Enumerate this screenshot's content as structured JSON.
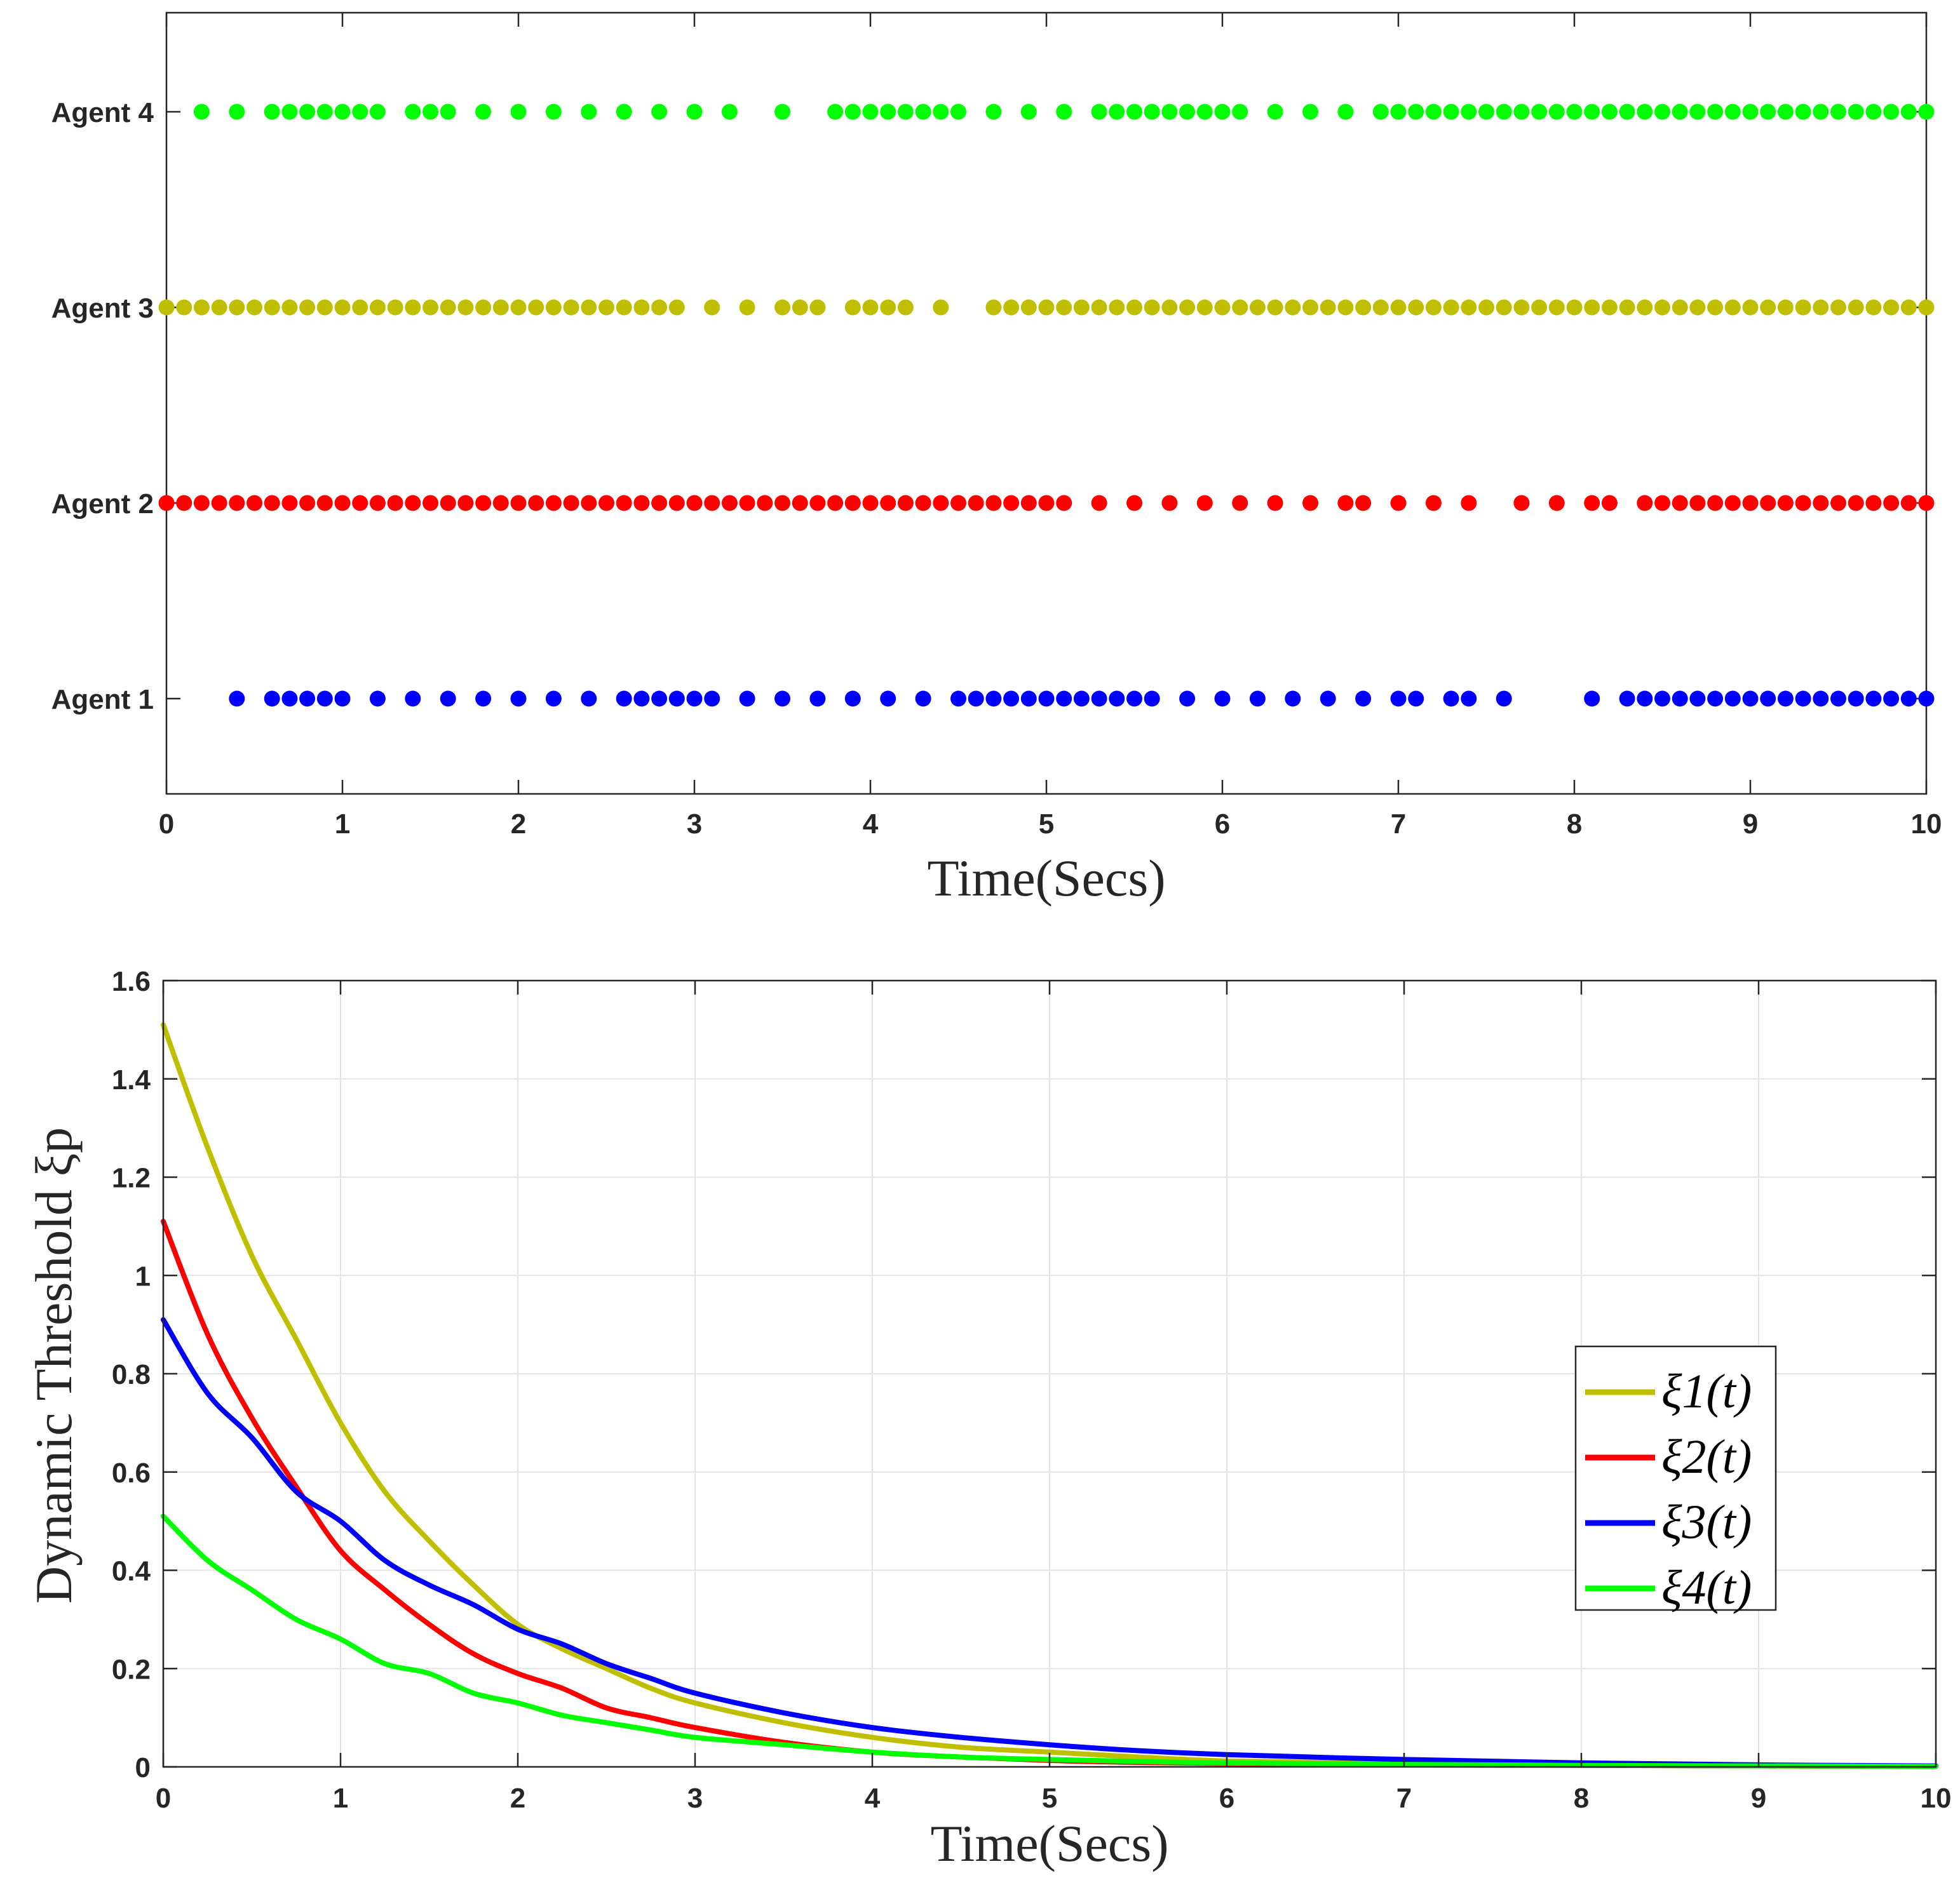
{
  "chart_data": [
    {
      "type": "scatter",
      "title": "",
      "xlabel": "Time(Secs)",
      "ylabel": "",
      "xlim": [
        0,
        10
      ],
      "xticks": [
        "0",
        "1",
        "2",
        "3",
        "4",
        "5",
        "6",
        "7",
        "8",
        "9",
        "10"
      ],
      "series": [
        {
          "name": "Agent 1",
          "color": "#0000ff",
          "x": [
            0.4,
            0.6,
            0.7,
            0.8,
            0.9,
            1.0,
            1.2,
            1.4,
            1.6,
            1.8,
            2.0,
            2.2,
            2.4,
            2.6,
            2.7,
            2.8,
            2.9,
            3.0,
            3.1,
            3.3,
            3.5,
            3.7,
            3.9,
            4.1,
            4.3,
            4.5,
            4.6,
            4.7,
            4.8,
            4.9,
            5.0,
            5.1,
            5.2,
            5.3,
            5.4,
            5.5,
            5.6,
            5.8,
            6.0,
            6.2,
            6.4,
            6.6,
            6.8,
            7.0,
            7.1,
            7.3,
            7.4,
            7.6,
            8.1,
            8.3,
            8.4,
            8.5,
            8.6,
            8.7,
            8.8,
            8.9,
            9.0,
            9.1,
            9.2,
            9.3,
            9.4,
            9.5,
            9.6,
            9.7,
            9.8,
            9.9,
            10.0
          ]
        },
        {
          "name": "Agent 2",
          "color": "#ff0000",
          "x": [
            0.0,
            0.1,
            0.2,
            0.3,
            0.4,
            0.5,
            0.6,
            0.7,
            0.8,
            0.9,
            1.0,
            1.1,
            1.2,
            1.3,
            1.4,
            1.5,
            1.6,
            1.7,
            1.8,
            1.9,
            2.0,
            2.1,
            2.2,
            2.3,
            2.4,
            2.5,
            2.6,
            2.7,
            2.8,
            2.9,
            3.0,
            3.1,
            3.2,
            3.3,
            3.4,
            3.5,
            3.6,
            3.7,
            3.8,
            3.9,
            4.0,
            4.1,
            4.2,
            4.3,
            4.4,
            4.5,
            4.6,
            4.7,
            4.8,
            4.9,
            5.0,
            5.1,
            5.3,
            5.5,
            5.7,
            5.9,
            6.1,
            6.3,
            6.5,
            6.7,
            6.8,
            7.0,
            7.2,
            7.4,
            7.7,
            7.9,
            8.1,
            8.2,
            8.4,
            8.5,
            8.6,
            8.7,
            8.8,
            8.9,
            9.0,
            9.1,
            9.2,
            9.3,
            9.4,
            9.5,
            9.6,
            9.7,
            9.8,
            9.9,
            10.0
          ]
        },
        {
          "name": "Agent 3",
          "color": "#bfbf00",
          "x": [
            0.0,
            0.1,
            0.2,
            0.3,
            0.4,
            0.5,
            0.6,
            0.7,
            0.8,
            0.9,
            1.0,
            1.1,
            1.2,
            1.3,
            1.4,
            1.5,
            1.6,
            1.7,
            1.8,
            1.9,
            2.0,
            2.1,
            2.2,
            2.3,
            2.4,
            2.5,
            2.6,
            2.7,
            2.8,
            2.9,
            3.1,
            3.3,
            3.5,
            3.6,
            3.7,
            3.9,
            4.0,
            4.1,
            4.2,
            4.4,
            4.7,
            4.8,
            4.9,
            5.0,
            5.1,
            5.2,
            5.3,
            5.4,
            5.5,
            5.6,
            5.7,
            5.8,
            5.9,
            6.0,
            6.1,
            6.2,
            6.3,
            6.4,
            6.5,
            6.6,
            6.7,
            6.8,
            6.9,
            7.0,
            7.1,
            7.2,
            7.3,
            7.4,
            7.5,
            7.6,
            7.7,
            7.8,
            7.9,
            8.0,
            8.1,
            8.2,
            8.3,
            8.4,
            8.5,
            8.6,
            8.7,
            8.8,
            8.9,
            9.0,
            9.1,
            9.2,
            9.3,
            9.4,
            9.5,
            9.6,
            9.7,
            9.8,
            9.9,
            10.0
          ]
        },
        {
          "name": "Agent 4",
          "color": "#00ff00",
          "x": [
            0.2,
            0.4,
            0.6,
            0.7,
            0.8,
            0.9,
            1.0,
            1.1,
            1.2,
            1.4,
            1.5,
            1.6,
            1.8,
            2.0,
            2.2,
            2.4,
            2.6,
            2.8,
            3.0,
            3.2,
            3.5,
            3.8,
            3.9,
            4.0,
            4.1,
            4.2,
            4.3,
            4.4,
            4.5,
            4.7,
            4.9,
            5.1,
            5.3,
            5.4,
            5.5,
            5.6,
            5.7,
            5.8,
            5.9,
            6.0,
            6.1,
            6.3,
            6.5,
            6.7,
            6.9,
            7.0,
            7.1,
            7.2,
            7.3,
            7.4,
            7.5,
            7.6,
            7.7,
            7.8,
            7.9,
            8.0,
            8.1,
            8.2,
            8.3,
            8.4,
            8.5,
            8.6,
            8.7,
            8.8,
            8.9,
            9.0,
            9.1,
            9.2,
            9.3,
            9.4,
            9.5,
            9.6,
            9.7,
            9.8,
            9.9,
            10.0
          ]
        }
      ]
    },
    {
      "type": "line",
      "title": "",
      "xlabel": "Time(Secs)",
      "ylabel": "Dynamic Threshold ξp",
      "xlim": [
        0,
        10
      ],
      "ylim": [
        0,
        1.6
      ],
      "grid": true,
      "xticks": [
        "0",
        "1",
        "2",
        "3",
        "4",
        "5",
        "6",
        "7",
        "8",
        "9",
        "10"
      ],
      "yticks": [
        "0",
        "0.2",
        "0.4",
        "0.6",
        "0.8",
        "1",
        "1.2",
        "1.4",
        "1.6"
      ],
      "legend_position": "center-right",
      "x": [
        0,
        0.25,
        0.5,
        0.75,
        1,
        1.25,
        1.5,
        1.75,
        2,
        2.25,
        2.5,
        2.75,
        3,
        3.5,
        4,
        4.5,
        5,
        5.5,
        6,
        7,
        8,
        9,
        10
      ],
      "series": [
        {
          "name": "ξ1(t)",
          "color": "#bfbf00",
          "values": [
            1.51,
            1.26,
            1.04,
            0.87,
            0.7,
            0.56,
            0.46,
            0.37,
            0.29,
            0.24,
            0.2,
            0.16,
            0.13,
            0.09,
            0.06,
            0.04,
            0.03,
            0.02,
            0.012,
            0.007,
            0.004,
            0.002,
            0.001
          ]
        },
        {
          "name": "ξ2(t)",
          "color": "#ff0000",
          "values": [
            1.11,
            0.88,
            0.71,
            0.57,
            0.44,
            0.36,
            0.29,
            0.23,
            0.19,
            0.16,
            0.12,
            0.1,
            0.08,
            0.05,
            0.03,
            0.02,
            0.013,
            0.009,
            0.007,
            0.004,
            0.003,
            0.002,
            0.001
          ]
        },
        {
          "name": "ξ3(t)",
          "color": "#0000ff",
          "values": [
            0.91,
            0.76,
            0.67,
            0.56,
            0.5,
            0.42,
            0.37,
            0.33,
            0.28,
            0.25,
            0.21,
            0.18,
            0.15,
            0.11,
            0.08,
            0.06,
            0.045,
            0.033,
            0.025,
            0.015,
            0.008,
            0.004,
            0.002
          ]
        },
        {
          "name": "ξ4(t)",
          "color": "#00ff00",
          "values": [
            0.51,
            0.42,
            0.36,
            0.3,
            0.26,
            0.21,
            0.19,
            0.15,
            0.13,
            0.105,
            0.09,
            0.075,
            0.06,
            0.045,
            0.03,
            0.02,
            0.015,
            0.011,
            0.008,
            0.005,
            0.003,
            0.002,
            0.001
          ]
        }
      ]
    }
  ]
}
